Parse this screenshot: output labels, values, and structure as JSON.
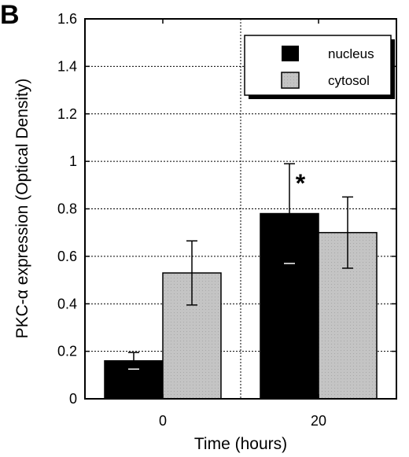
{
  "panel_label": "B",
  "chart_data": {
    "type": "bar",
    "title": "",
    "xlabel": "Time (hours)",
    "ylabel": "PKC-α expression (Optical Density)",
    "categories": [
      "0",
      "20"
    ],
    "ylim": [
      0,
      1.6
    ],
    "yticks": [
      "0",
      "0.2",
      "0.4",
      "0.6",
      "0.8",
      "1",
      "1.2",
      "1.4",
      "1.6"
    ],
    "grid": true,
    "legend_position": "top-right",
    "series": [
      {
        "name": "nucleus",
        "color": "#000000",
        "values": [
          0.16,
          0.78
        ],
        "errors": [
          0.035,
          0.21
        ]
      },
      {
        "name": "cytosol",
        "color": "#c4c4c4",
        "values": [
          0.53,
          0.7
        ],
        "errors": [
          0.135,
          0.15
        ]
      }
    ],
    "annotations": [
      {
        "text": "*",
        "category": "20",
        "series": "nucleus"
      }
    ]
  }
}
